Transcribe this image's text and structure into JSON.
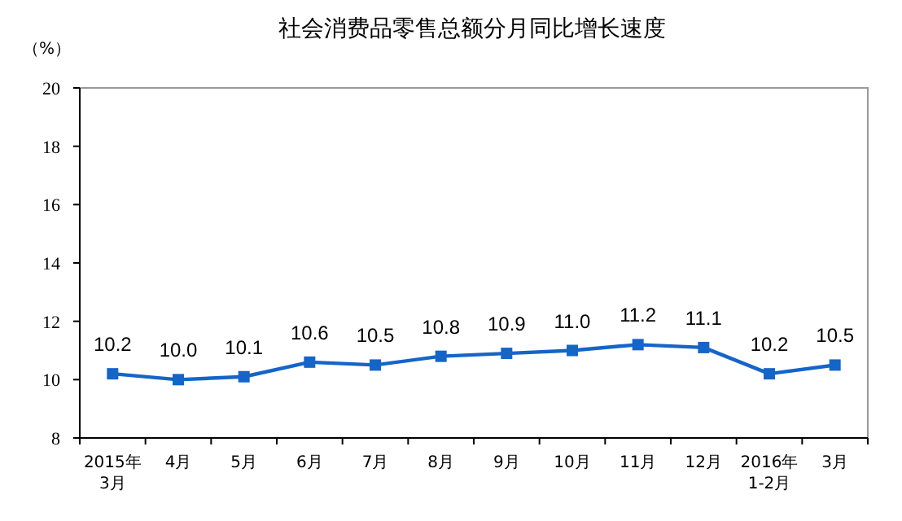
{
  "chart_data": {
    "type": "line",
    "title": "社会消费品零售总额分月同比增长速度",
    "ylabel": "（%）",
    "categories": [
      "2015年\n3月",
      "4月",
      "5月",
      "6月",
      "7月",
      "8月",
      "9月",
      "10月",
      "11月",
      "12月",
      "2016年\n1-2月",
      "3月"
    ],
    "series": [
      {
        "color": "#1565c8",
        "values": [
          10.2,
          10.0,
          10.1,
          10.6,
          10.5,
          10.8,
          10.9,
          11.0,
          11.2,
          11.1,
          10.2,
          10.5
        ],
        "value_labels": [
          "10.2",
          "10.0",
          "10.1",
          "10.6",
          "10.5",
          "10.8",
          "10.9",
          "11.0",
          "11.2",
          "11.1",
          "10.2",
          "10.5"
        ]
      }
    ],
    "ylim": [
      8,
      20
    ],
    "yticks": [
      8,
      10,
      12,
      14,
      16,
      18,
      20
    ],
    "marker": "square",
    "line_style": "solid"
  }
}
